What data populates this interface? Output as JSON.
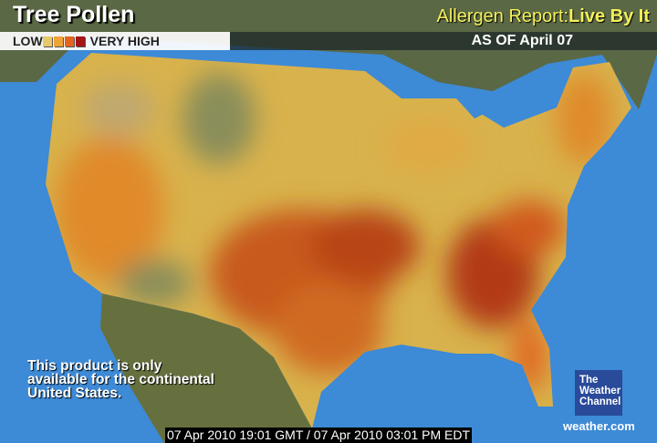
{
  "header": {
    "title": "Tree Pollen",
    "brand_prefix": "Allergen Report:",
    "brand_tagline": "Live By It"
  },
  "legend": {
    "low_label": "LOW",
    "high_label": "VERY HIGH",
    "colors": [
      "#e8c96a",
      "#eea436",
      "#e4641e",
      "#a51414"
    ]
  },
  "as_of": "AS OF April 07",
  "note": [
    "This product is only",
    "available for the continental",
    "United States."
  ],
  "timestamp": "07 Apr 2010 19:01 GMT / 07 Apr 2010 03:01 PM EDT",
  "logo": {
    "line1": "The",
    "line2": "Weather",
    "line3": "Channel"
  },
  "site": "weather.com",
  "colors": {
    "ocean": "#3d8ad6",
    "land": "#5d6c45"
  }
}
